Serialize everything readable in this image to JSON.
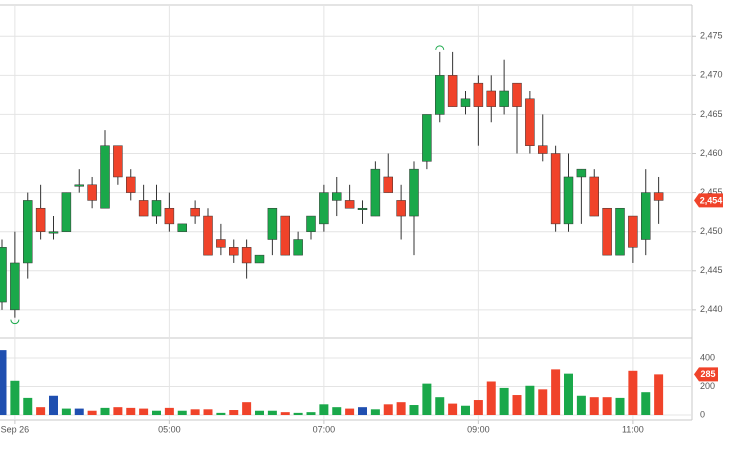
{
  "chart_data": {
    "type": "candlestick",
    "categories": [
      null,
      "Sep 26",
      null,
      null,
      null,
      null,
      null,
      null,
      null,
      null,
      null,
      null,
      null,
      "05:00",
      null,
      null,
      null,
      null,
      null,
      null,
      null,
      null,
      null,
      null,
      null,
      "07:00",
      null,
      null,
      null,
      null,
      null,
      null,
      null,
      null,
      null,
      null,
      null,
      "09:00",
      null,
      null,
      null,
      null,
      null,
      null,
      null,
      null,
      null,
      null,
      null,
      "11:00",
      null,
      null
    ],
    "open": [
      2441,
      2440,
      2446,
      2453,
      2450,
      2450,
      2456,
      2456,
      2453,
      2461,
      2457,
      2454,
      2452,
      2453,
      2450,
      2453,
      2452,
      2449,
      2448,
      2448,
      2446,
      2449,
      2452,
      2447,
      2450,
      2451,
      2454,
      2454,
      2453,
      2452,
      2457,
      2454,
      2452,
      2459,
      2465,
      2470,
      2466,
      2469,
      2468,
      2466,
      2469,
      2467,
      2461,
      2460,
      2451,
      2457,
      2457,
      2453,
      2447,
      2452,
      2449,
      2455
    ],
    "high": [
      2449,
      2450,
      2455,
      2456,
      2452,
      2455,
      2458,
      2457,
      2463,
      2461,
      2458,
      2456,
      2456,
      2455,
      2451,
      2454,
      2453,
      2451,
      2449,
      2449,
      2447,
      2453,
      2452,
      2450,
      2452,
      2456,
      2457,
      2456,
      2454,
      2459,
      2460,
      2456,
      2459,
      2465,
      2473,
      2473,
      2468,
      2470,
      2470,
      2472,
      2469,
      2468,
      2465,
      2461,
      2460,
      2458,
      2458,
      2453,
      2453,
      2452,
      2458,
      2457
    ],
    "low": [
      2440,
      2439,
      2444,
      2449,
      2449,
      2450,
      2455,
      2453,
      2453,
      2456,
      2454,
      2452,
      2451,
      2450,
      2450,
      2451,
      2447,
      2447,
      2446,
      2444,
      2446,
      2447,
      2447,
      2447,
      2449,
      2450,
      2452,
      2453,
      2451,
      2452,
      2455,
      2449,
      2447,
      2458,
      2464,
      2466,
      2465,
      2461,
      2464,
      2465,
      2460,
      2460,
      2459,
      2450,
      2450,
      2451,
      2452,
      2447,
      2447,
      2446,
      2447,
      2451
    ],
    "close": [
      2448,
      2446,
      2454,
      2450,
      2450,
      2455,
      2456,
      2454,
      2461,
      2457,
      2455,
      2452,
      2454,
      2451,
      2451,
      2452,
      2447,
      2448,
      2447,
      2446,
      2447,
      2453,
      2447,
      2449,
      2452,
      2455,
      2455,
      2453,
      2453,
      2458,
      2455,
      2452,
      2458,
      2465,
      2470,
      2466,
      2467,
      2466,
      2466,
      2468,
      2466,
      2461,
      2460,
      2451,
      2457,
      2458,
      2452,
      2447,
      2453,
      2448,
      2455,
      2454
    ],
    "up_color": "#1aa84a",
    "down_color": "#f0432a",
    "ylim": [
      2436.4,
      2479
    ],
    "yticks": [
      {
        "value": 2440,
        "label": "2,440"
      },
      {
        "value": 2445,
        "label": "2,445"
      },
      {
        "value": 2450,
        "label": "2,450"
      },
      {
        "value": 2455,
        "label": "2,455"
      },
      {
        "value": 2460,
        "label": "2,460"
      },
      {
        "value": 2465,
        "label": "2,465"
      },
      {
        "value": 2470,
        "label": "2,470"
      },
      {
        "value": 2475,
        "label": "2,475"
      }
    ],
    "last_price": {
      "value": 2454,
      "label": "2,454"
    },
    "volume": [
      455,
      240,
      120,
      55,
      135,
      45,
      45,
      30,
      50,
      55,
      50,
      45,
      30,
      50,
      30,
      40,
      40,
      15,
      35,
      90,
      30,
      30,
      20,
      15,
      20,
      75,
      55,
      45,
      55,
      40,
      75,
      90,
      70,
      220,
      125,
      80,
      65,
      105,
      235,
      190,
      140,
      205,
      180,
      320,
      290,
      135,
      125,
      125,
      120,
      310,
      160,
      285
    ],
    "volume_colors": [
      "#1f4fb0",
      "#1aa84a",
      "#1aa84a",
      "#f0432a",
      "#1f4fb0",
      "#1aa84a",
      "#1f4fb0",
      "#f0432a",
      "#1aa84a",
      "#f0432a",
      "#f0432a",
      "#f0432a",
      "#1aa84a",
      "#f0432a",
      "#1aa84a",
      "#f0432a",
      "#f0432a",
      "#1aa84a",
      "#f0432a",
      "#f0432a",
      "#1aa84a",
      "#1aa84a",
      "#f0432a",
      "#1aa84a",
      "#1aa84a",
      "#1aa84a",
      "#1aa84a",
      "#f0432a",
      "#1f4fb0",
      "#1aa84a",
      "#f0432a",
      "#f0432a",
      "#1aa84a",
      "#1aa84a",
      "#1aa84a",
      "#f0432a",
      "#1aa84a",
      "#f0432a",
      "#f0432a",
      "#1aa84a",
      "#f0432a",
      "#1aa84a",
      "#f0432a",
      "#f0432a",
      "#1aa84a",
      "#1aa84a",
      "#f0432a",
      "#f0432a",
      "#1aa84a",
      "#f0432a",
      "#1aa84a",
      "#f0432a"
    ],
    "volume_ylim": [
      -35,
      540
    ],
    "volume_yticks": [
      0,
      200,
      400
    ],
    "last_volume": 285,
    "grid": true
  }
}
